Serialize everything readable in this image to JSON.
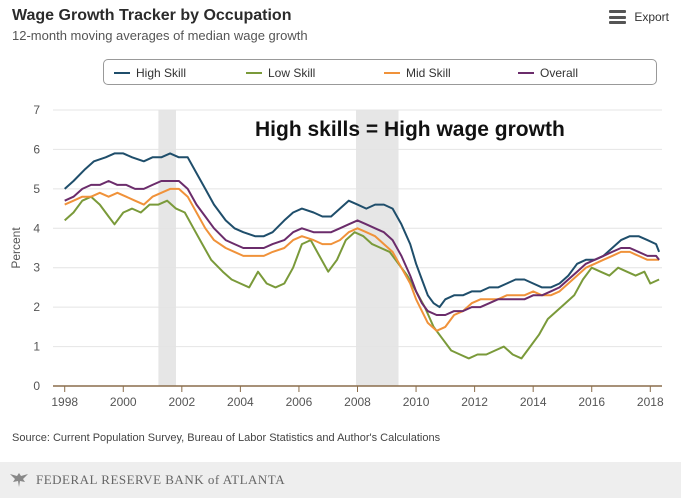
{
  "header": {
    "title": "Wage Growth Tracker by Occupation",
    "subtitle": "12-month moving averages of median wage growth",
    "export_label": "Export"
  },
  "annotation": "High skills = High wage growth",
  "source": "Source: Current Population Survey, Bureau of Labor Statistics and Author's Calculations",
  "footer": {
    "text": "FEDERAL RESERVE BANK of ATLANTA",
    "logo_icon": "eagle-icon"
  },
  "colors": {
    "high_skill": "#1f4e6b",
    "low_skill": "#7a9a3a",
    "mid_skill": "#f0923a",
    "overall": "#6b2c6b",
    "recession_band": "#e6e6e6",
    "grid": "#e4e4e4",
    "axis": "#8a6d4b"
  },
  "chart_data": {
    "type": "line",
    "title": "Wage Growth Tracker by Occupation",
    "subtitle": "12-month moving averages of median wage growth",
    "ylabel": "Percent",
    "xlabel": "",
    "ylim": [
      0,
      7
    ],
    "xlim": [
      1997.6,
      2018.4
    ],
    "yticks": [
      0,
      1,
      2,
      3,
      4,
      5,
      6,
      7
    ],
    "xticks": [
      1998,
      2000,
      2002,
      2004,
      2006,
      2008,
      2010,
      2012,
      2014,
      2016,
      2018
    ],
    "grid": true,
    "legend_position": "top",
    "recessions": [
      [
        2001.2,
        2001.8
      ],
      [
        2007.95,
        2009.4
      ]
    ],
    "series": [
      {
        "name": "High Skill",
        "color": "#1f4e6b",
        "points": [
          [
            1998.0,
            5.0
          ],
          [
            1998.3,
            5.2
          ],
          [
            1998.7,
            5.5
          ],
          [
            1999.0,
            5.7
          ],
          [
            1999.4,
            5.8
          ],
          [
            1999.7,
            5.9
          ],
          [
            2000.0,
            5.9
          ],
          [
            2000.3,
            5.8
          ],
          [
            2000.7,
            5.7
          ],
          [
            2001.0,
            5.8
          ],
          [
            2001.3,
            5.8
          ],
          [
            2001.6,
            5.9
          ],
          [
            2001.9,
            5.8
          ],
          [
            2002.2,
            5.8
          ],
          [
            2002.5,
            5.4
          ],
          [
            2002.8,
            5.0
          ],
          [
            2003.1,
            4.6
          ],
          [
            2003.5,
            4.2
          ],
          [
            2003.8,
            4.0
          ],
          [
            2004.1,
            3.9
          ],
          [
            2004.5,
            3.8
          ],
          [
            2004.8,
            3.8
          ],
          [
            2005.1,
            3.9
          ],
          [
            2005.5,
            4.2
          ],
          [
            2005.8,
            4.4
          ],
          [
            2006.1,
            4.5
          ],
          [
            2006.5,
            4.4
          ],
          [
            2006.8,
            4.3
          ],
          [
            2007.1,
            4.3
          ],
          [
            2007.4,
            4.5
          ],
          [
            2007.7,
            4.7
          ],
          [
            2008.0,
            4.6
          ],
          [
            2008.3,
            4.5
          ],
          [
            2008.6,
            4.6
          ],
          [
            2008.9,
            4.6
          ],
          [
            2009.2,
            4.5
          ],
          [
            2009.5,
            4.1
          ],
          [
            2009.8,
            3.6
          ],
          [
            2010.0,
            3.1
          ],
          [
            2010.2,
            2.7
          ],
          [
            2010.4,
            2.3
          ],
          [
            2010.6,
            2.1
          ],
          [
            2010.8,
            2.0
          ],
          [
            2011.0,
            2.2
          ],
          [
            2011.3,
            2.3
          ],
          [
            2011.6,
            2.3
          ],
          [
            2011.9,
            2.4
          ],
          [
            2012.2,
            2.4
          ],
          [
            2012.5,
            2.5
          ],
          [
            2012.8,
            2.5
          ],
          [
            2013.1,
            2.6
          ],
          [
            2013.4,
            2.7
          ],
          [
            2013.7,
            2.7
          ],
          [
            2014.0,
            2.6
          ],
          [
            2014.3,
            2.5
          ],
          [
            2014.6,
            2.5
          ],
          [
            2014.9,
            2.6
          ],
          [
            2015.2,
            2.8
          ],
          [
            2015.5,
            3.1
          ],
          [
            2015.8,
            3.2
          ],
          [
            2016.1,
            3.2
          ],
          [
            2016.4,
            3.3
          ],
          [
            2016.7,
            3.5
          ],
          [
            2017.0,
            3.7
          ],
          [
            2017.3,
            3.8
          ],
          [
            2017.6,
            3.8
          ],
          [
            2017.9,
            3.7
          ],
          [
            2018.2,
            3.6
          ],
          [
            2018.3,
            3.4
          ]
        ]
      },
      {
        "name": "Low Skill",
        "color": "#7a9a3a",
        "points": [
          [
            1998.0,
            4.2
          ],
          [
            1998.3,
            4.4
          ],
          [
            1998.6,
            4.7
          ],
          [
            1998.9,
            4.8
          ],
          [
            1999.2,
            4.6
          ],
          [
            1999.5,
            4.3
          ],
          [
            1999.7,
            4.1
          ],
          [
            2000.0,
            4.4
          ],
          [
            2000.3,
            4.5
          ],
          [
            2000.6,
            4.4
          ],
          [
            2000.9,
            4.6
          ],
          [
            2001.2,
            4.6
          ],
          [
            2001.5,
            4.7
          ],
          [
            2001.8,
            4.5
          ],
          [
            2002.1,
            4.4
          ],
          [
            2002.4,
            4.0
          ],
          [
            2002.7,
            3.6
          ],
          [
            2003.0,
            3.2
          ],
          [
            2003.4,
            2.9
          ],
          [
            2003.7,
            2.7
          ],
          [
            2004.0,
            2.6
          ],
          [
            2004.3,
            2.5
          ],
          [
            2004.6,
            2.9
          ],
          [
            2004.9,
            2.6
          ],
          [
            2005.2,
            2.5
          ],
          [
            2005.5,
            2.6
          ],
          [
            2005.8,
            3.0
          ],
          [
            2006.1,
            3.6
          ],
          [
            2006.4,
            3.7
          ],
          [
            2006.7,
            3.3
          ],
          [
            2007.0,
            2.9
          ],
          [
            2007.3,
            3.2
          ],
          [
            2007.6,
            3.7
          ],
          [
            2007.9,
            3.9
          ],
          [
            2008.2,
            3.8
          ],
          [
            2008.5,
            3.6
          ],
          [
            2008.8,
            3.5
          ],
          [
            2009.1,
            3.4
          ],
          [
            2009.4,
            3.1
          ],
          [
            2009.7,
            2.8
          ],
          [
            2010.0,
            2.4
          ],
          [
            2010.3,
            2.0
          ],
          [
            2010.6,
            1.5
          ],
          [
            2010.9,
            1.2
          ],
          [
            2011.2,
            0.9
          ],
          [
            2011.5,
            0.8
          ],
          [
            2011.8,
            0.7
          ],
          [
            2012.1,
            0.8
          ],
          [
            2012.4,
            0.8
          ],
          [
            2012.7,
            0.9
          ],
          [
            2013.0,
            1.0
          ],
          [
            2013.3,
            0.8
          ],
          [
            2013.6,
            0.7
          ],
          [
            2013.9,
            1.0
          ],
          [
            2014.2,
            1.3
          ],
          [
            2014.5,
            1.7
          ],
          [
            2014.8,
            1.9
          ],
          [
            2015.1,
            2.1
          ],
          [
            2015.4,
            2.3
          ],
          [
            2015.7,
            2.7
          ],
          [
            2016.0,
            3.0
          ],
          [
            2016.3,
            2.9
          ],
          [
            2016.6,
            2.8
          ],
          [
            2016.9,
            3.0
          ],
          [
            2017.2,
            2.9
          ],
          [
            2017.5,
            2.8
          ],
          [
            2017.8,
            2.9
          ],
          [
            2018.0,
            2.6
          ],
          [
            2018.3,
            2.7
          ]
        ]
      },
      {
        "name": "Mid Skill",
        "color": "#f0923a",
        "points": [
          [
            1998.0,
            4.6
          ],
          [
            1998.3,
            4.7
          ],
          [
            1998.6,
            4.8
          ],
          [
            1998.9,
            4.8
          ],
          [
            1999.2,
            4.9
          ],
          [
            1999.5,
            4.8
          ],
          [
            1999.8,
            4.9
          ],
          [
            2000.1,
            4.8
          ],
          [
            2000.4,
            4.7
          ],
          [
            2000.7,
            4.6
          ],
          [
            2001.0,
            4.8
          ],
          [
            2001.3,
            4.9
          ],
          [
            2001.6,
            5.0
          ],
          [
            2001.9,
            5.0
          ],
          [
            2002.2,
            4.8
          ],
          [
            2002.5,
            4.4
          ],
          [
            2002.8,
            4.0
          ],
          [
            2003.1,
            3.7
          ],
          [
            2003.5,
            3.5
          ],
          [
            2003.8,
            3.4
          ],
          [
            2004.1,
            3.3
          ],
          [
            2004.5,
            3.3
          ],
          [
            2004.8,
            3.3
          ],
          [
            2005.1,
            3.4
          ],
          [
            2005.5,
            3.5
          ],
          [
            2005.8,
            3.7
          ],
          [
            2006.1,
            3.8
          ],
          [
            2006.5,
            3.7
          ],
          [
            2006.8,
            3.6
          ],
          [
            2007.1,
            3.6
          ],
          [
            2007.4,
            3.7
          ],
          [
            2007.7,
            3.9
          ],
          [
            2008.0,
            4.0
          ],
          [
            2008.3,
            3.9
          ],
          [
            2008.6,
            3.8
          ],
          [
            2008.9,
            3.6
          ],
          [
            2009.2,
            3.4
          ],
          [
            2009.5,
            3.0
          ],
          [
            2009.8,
            2.6
          ],
          [
            2010.0,
            2.2
          ],
          [
            2010.2,
            1.9
          ],
          [
            2010.4,
            1.6
          ],
          [
            2010.7,
            1.4
          ],
          [
            2011.0,
            1.5
          ],
          [
            2011.3,
            1.8
          ],
          [
            2011.6,
            1.9
          ],
          [
            2011.9,
            2.1
          ],
          [
            2012.2,
            2.2
          ],
          [
            2012.5,
            2.2
          ],
          [
            2012.8,
            2.2
          ],
          [
            2013.1,
            2.3
          ],
          [
            2013.4,
            2.3
          ],
          [
            2013.7,
            2.3
          ],
          [
            2014.0,
            2.4
          ],
          [
            2014.3,
            2.3
          ],
          [
            2014.6,
            2.3
          ],
          [
            2014.9,
            2.4
          ],
          [
            2015.2,
            2.6
          ],
          [
            2015.5,
            2.8
          ],
          [
            2015.8,
            3.0
          ],
          [
            2016.1,
            3.1
          ],
          [
            2016.4,
            3.2
          ],
          [
            2016.7,
            3.3
          ],
          [
            2017.0,
            3.4
          ],
          [
            2017.3,
            3.4
          ],
          [
            2017.6,
            3.3
          ],
          [
            2017.9,
            3.2
          ],
          [
            2018.2,
            3.2
          ],
          [
            2018.3,
            3.2
          ]
        ]
      },
      {
        "name": "Overall",
        "color": "#6b2c6b",
        "points": [
          [
            1998.0,
            4.7
          ],
          [
            1998.3,
            4.8
          ],
          [
            1998.6,
            5.0
          ],
          [
            1998.9,
            5.1
          ],
          [
            1999.2,
            5.1
          ],
          [
            1999.5,
            5.2
          ],
          [
            1999.8,
            5.1
          ],
          [
            2000.1,
            5.1
          ],
          [
            2000.4,
            5.0
          ],
          [
            2000.7,
            5.0
          ],
          [
            2001.0,
            5.1
          ],
          [
            2001.3,
            5.2
          ],
          [
            2001.6,
            5.2
          ],
          [
            2001.9,
            5.2
          ],
          [
            2002.2,
            5.0
          ],
          [
            2002.5,
            4.6
          ],
          [
            2002.8,
            4.3
          ],
          [
            2003.1,
            4.0
          ],
          [
            2003.5,
            3.7
          ],
          [
            2003.8,
            3.6
          ],
          [
            2004.1,
            3.5
          ],
          [
            2004.5,
            3.5
          ],
          [
            2004.8,
            3.5
          ],
          [
            2005.1,
            3.6
          ],
          [
            2005.5,
            3.7
          ],
          [
            2005.8,
            3.9
          ],
          [
            2006.1,
            4.0
          ],
          [
            2006.5,
            3.9
          ],
          [
            2006.8,
            3.9
          ],
          [
            2007.1,
            3.9
          ],
          [
            2007.4,
            4.0
          ],
          [
            2007.7,
            4.1
          ],
          [
            2008.0,
            4.2
          ],
          [
            2008.3,
            4.1
          ],
          [
            2008.6,
            4.0
          ],
          [
            2008.9,
            3.9
          ],
          [
            2009.2,
            3.7
          ],
          [
            2009.5,
            3.3
          ],
          [
            2009.8,
            2.8
          ],
          [
            2010.0,
            2.4
          ],
          [
            2010.2,
            2.1
          ],
          [
            2010.4,
            1.9
          ],
          [
            2010.7,
            1.8
          ],
          [
            2011.0,
            1.8
          ],
          [
            2011.3,
            1.9
          ],
          [
            2011.6,
            1.9
          ],
          [
            2011.9,
            2.0
          ],
          [
            2012.2,
            2.0
          ],
          [
            2012.5,
            2.1
          ],
          [
            2012.8,
            2.2
          ],
          [
            2013.1,
            2.2
          ],
          [
            2013.4,
            2.2
          ],
          [
            2013.7,
            2.2
          ],
          [
            2014.0,
            2.3
          ],
          [
            2014.3,
            2.3
          ],
          [
            2014.6,
            2.4
          ],
          [
            2014.9,
            2.5
          ],
          [
            2015.2,
            2.7
          ],
          [
            2015.5,
            2.9
          ],
          [
            2015.8,
            3.1
          ],
          [
            2016.1,
            3.2
          ],
          [
            2016.4,
            3.3
          ],
          [
            2016.7,
            3.4
          ],
          [
            2017.0,
            3.5
          ],
          [
            2017.3,
            3.5
          ],
          [
            2017.6,
            3.4
          ],
          [
            2017.9,
            3.3
          ],
          [
            2018.2,
            3.3
          ],
          [
            2018.3,
            3.2
          ]
        ]
      }
    ]
  }
}
